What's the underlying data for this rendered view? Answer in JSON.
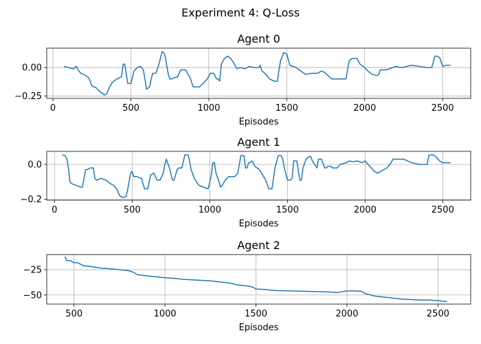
{
  "suptitle": "Experiment 4: Q-Loss",
  "chart_data": [
    {
      "type": "line",
      "title": "Agent 0",
      "xlabel": "Episodes",
      "ylabel": "",
      "xlim": [
        -40,
        2680
      ],
      "ylim": [
        -0.27,
        0.17
      ],
      "xticks": [
        0,
        500,
        1000,
        1500,
        2000,
        2500
      ],
      "yticks": [
        0.0,
        -0.25
      ],
      "ytick_labels": [
        "0.00",
        "−0.25"
      ],
      "grid": true,
      "series": [
        {
          "color": "#1f77b4",
          "x": [
            70,
            100,
            130,
            150,
            165,
            180,
            200,
            230,
            250,
            280,
            300,
            330,
            345,
            360,
            380,
            410,
            440,
            450,
            460,
            470,
            480,
            500,
            520,
            540,
            560,
            580,
            590,
            600,
            620,
            630,
            640,
            660,
            680,
            700,
            710,
            720,
            740,
            750,
            760,
            780,
            800,
            820,
            850,
            880,
            900,
            940,
            970,
            990,
            1010,
            1030,
            1050,
            1060,
            1070,
            1080,
            1100,
            1120,
            1140,
            1160,
            1180,
            1200,
            1230,
            1260,
            1290,
            1320,
            1330,
            1340,
            1360,
            1390,
            1420,
            1440,
            1450,
            1460,
            1480,
            1500,
            1520,
            1540,
            1560,
            1580,
            1620,
            1660,
            1700,
            1720,
            1740,
            1780,
            1790,
            1800,
            1820,
            1840,
            1880,
            1900,
            1920,
            1930,
            1950,
            1970,
            1990,
            2000,
            2020,
            2050,
            2080,
            2090,
            2100,
            2140,
            2180,
            2200,
            2240,
            2300,
            2350,
            2400,
            2430,
            2450,
            2460,
            2480,
            2500,
            2520,
            2550
          ],
          "y": [
            0.01,
            0.0,
            -0.01,
            0.01,
            -0.03,
            -0.05,
            -0.06,
            -0.09,
            -0.16,
            -0.18,
            -0.21,
            -0.24,
            -0.23,
            -0.18,
            -0.13,
            -0.1,
            -0.08,
            0.03,
            0.03,
            -0.05,
            -0.14,
            -0.14,
            -0.03,
            0.0,
            0.01,
            -0.02,
            -0.1,
            -0.19,
            -0.17,
            -0.1,
            -0.05,
            -0.05,
            0.03,
            0.14,
            0.13,
            0.1,
            -0.06,
            -0.1,
            -0.1,
            -0.09,
            -0.08,
            -0.02,
            -0.02,
            -0.09,
            -0.17,
            -0.17,
            -0.13,
            -0.1,
            -0.05,
            -0.05,
            -0.1,
            -0.1,
            -0.12,
            0.03,
            0.08,
            0.1,
            0.08,
            0.04,
            -0.01,
            0.0,
            -0.01,
            0.01,
            0.0,
            0.0,
            0.02,
            -0.03,
            -0.05,
            -0.1,
            -0.12,
            -0.12,
            -0.02,
            0.06,
            0.13,
            0.12,
            0.02,
            0.01,
            0.0,
            -0.02,
            -0.06,
            -0.05,
            -0.05,
            -0.03,
            -0.04,
            -0.09,
            -0.1,
            -0.1,
            -0.1,
            -0.1,
            -0.1,
            0.06,
            0.08,
            0.08,
            0.08,
            0.03,
            0.01,
            0.0,
            -0.03,
            -0.06,
            -0.07,
            -0.06,
            -0.02,
            -0.02,
            0.0,
            0.01,
            0.0,
            0.02,
            0.01,
            0.0,
            0.0,
            0.1,
            0.1,
            0.09,
            0.01,
            0.02,
            0.02
          ]
        }
      ]
    },
    {
      "type": "line",
      "title": "Agent 1",
      "xlabel": "Episodes",
      "ylabel": "",
      "xlim": [
        -50,
        2680
      ],
      "ylim": [
        -0.205,
        0.075
      ],
      "xticks": [
        0,
        500,
        1000,
        1500,
        2000,
        2500
      ],
      "yticks": [
        0.0,
        -0.2
      ],
      "ytick_labels": [
        "0.0",
        "−0.2"
      ],
      "grid": true,
      "series": [
        {
          "color": "#1f77b4",
          "x": [
            50,
            70,
            80,
            90,
            100,
            110,
            140,
            170,
            180,
            200,
            210,
            230,
            250,
            260,
            270,
            300,
            330,
            360,
            380,
            400,
            420,
            440,
            460,
            470,
            490,
            500,
            510,
            530,
            560,
            580,
            600,
            620,
            640,
            650,
            660,
            680,
            700,
            710,
            720,
            740,
            760,
            770,
            790,
            800,
            820,
            840,
            860,
            870,
            880,
            900,
            930,
            960,
            990,
            1000,
            1010,
            1020,
            1030,
            1040,
            1060,
            1070,
            1080,
            1100,
            1120,
            1140,
            1160,
            1180,
            1200,
            1220,
            1230,
            1240,
            1250,
            1260,
            1270,
            1280,
            1290,
            1320,
            1340,
            1360,
            1380,
            1400,
            1420,
            1440,
            1460,
            1470,
            1480,
            1500,
            1520,
            1530,
            1540,
            1560,
            1580,
            1590,
            1600,
            1620,
            1640,
            1650,
            1660,
            1690,
            1700,
            1720,
            1740,
            1750,
            1760,
            1780,
            1790,
            1800,
            1820,
            1840,
            1880,
            1900,
            1920,
            1950,
            1980,
            2000,
            2020,
            2040,
            2060,
            2080,
            2100,
            2120,
            2140,
            2160,
            2180,
            2200,
            2250,
            2300,
            2350,
            2400,
            2410,
            2420,
            2440,
            2460,
            2480,
            2500,
            2520,
            2550
          ],
          "y": [
            0.055,
            0.05,
            0.03,
            -0.02,
            -0.1,
            -0.11,
            -0.12,
            -0.13,
            -0.13,
            -0.03,
            -0.03,
            -0.02,
            -0.02,
            -0.08,
            -0.09,
            -0.08,
            -0.09,
            -0.11,
            -0.12,
            -0.14,
            -0.18,
            -0.19,
            -0.185,
            -0.15,
            -0.05,
            -0.04,
            -0.07,
            -0.07,
            -0.08,
            -0.14,
            -0.14,
            -0.06,
            -0.05,
            -0.07,
            -0.09,
            -0.09,
            -0.05,
            0.0,
            0.03,
            -0.02,
            -0.09,
            -0.09,
            -0.03,
            -0.02,
            -0.02,
            0.055,
            0.055,
            0.02,
            -0.03,
            -0.08,
            -0.12,
            -0.13,
            -0.14,
            -0.1,
            -0.06,
            0.01,
            0.01,
            -0.05,
            -0.1,
            -0.13,
            -0.12,
            -0.09,
            -0.07,
            -0.07,
            -0.07,
            -0.05,
            0.05,
            0.05,
            -0.02,
            -0.02,
            0.01,
            0.01,
            0.02,
            0.01,
            -0.01,
            -0.03,
            -0.06,
            -0.09,
            -0.14,
            -0.14,
            -0.02,
            0.05,
            0.05,
            0.03,
            -0.02,
            -0.09,
            -0.09,
            -0.08,
            0.02,
            0.02,
            -0.09,
            -0.09,
            -0.02,
            0.03,
            0.045,
            0.045,
            0.02,
            -0.02,
            0.03,
            0.03,
            -0.02,
            -0.02,
            -0.01,
            -0.01,
            -0.02,
            -0.02,
            -0.02,
            0.0,
            0.01,
            0.02,
            0.015,
            0.02,
            0.01,
            0.02,
            0.0,
            -0.02,
            -0.04,
            -0.05,
            -0.04,
            -0.03,
            -0.02,
            0.0,
            0.03,
            0.03,
            0.03,
            0.01,
            0.0,
            0.0,
            0.05,
            0.055,
            0.055,
            0.04,
            0.02,
            0.01,
            0.01,
            0.01
          ]
        }
      ]
    },
    {
      "type": "line",
      "title": "Agent 2",
      "xlabel": "Episodes",
      "ylabel": "",
      "xlim": [
        350,
        2680
      ],
      "ylim": [
        -59,
        -10
      ],
      "xticks": [
        500,
        1000,
        1500,
        2000,
        2500
      ],
      "yticks": [
        -25,
        -50
      ],
      "ytick_labels": [
        "−25",
        "−50"
      ],
      "grid": true,
      "series": [
        {
          "color": "#1f77b4",
          "x": [
            450,
            460,
            480,
            500,
            520,
            550,
            600,
            650,
            700,
            750,
            800,
            820,
            850,
            900,
            950,
            1000,
            1050,
            1100,
            1150,
            1200,
            1250,
            1300,
            1350,
            1400,
            1450,
            1480,
            1500,
            1550,
            1600,
            1700,
            1800,
            1900,
            1950,
            2000,
            2050,
            2080,
            2100,
            2150,
            2200,
            2250,
            2300,
            2350,
            2400,
            2450,
            2500,
            2520,
            2550
          ],
          "y": [
            -12,
            -16,
            -16,
            -18,
            -18,
            -21,
            -22,
            -23.5,
            -24,
            -25,
            -26,
            -27,
            -30,
            -31,
            -32,
            -33,
            -33.5,
            -34.5,
            -35,
            -35.5,
            -36,
            -37,
            -38,
            -40,
            -41,
            -42,
            -44,
            -44.5,
            -45.5,
            -46,
            -46.5,
            -47,
            -47.5,
            -46,
            -46,
            -46.5,
            -48.5,
            -51,
            -52,
            -53,
            -54,
            -54.5,
            -55,
            -55,
            -55.5,
            -56,
            -56.5
          ]
        }
      ]
    }
  ]
}
